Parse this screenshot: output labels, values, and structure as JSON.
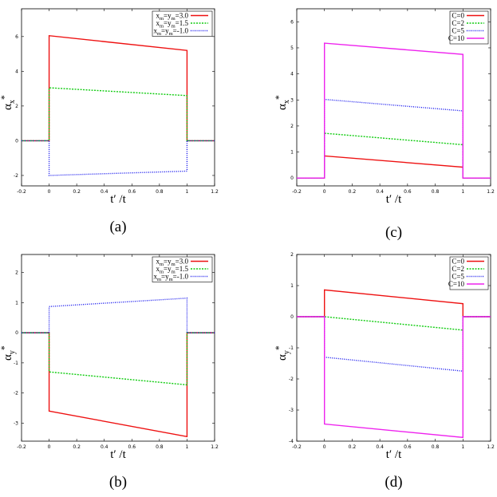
{
  "chart_data": [
    {
      "type": "line",
      "caption": "(a)",
      "xlabel": "t′ /t",
      "ylabel": "α",
      "ylabel_sub": "x",
      "ylabel_sup": "*",
      "xlim": [
        -0.2,
        1.2
      ],
      "ylim": [
        -2.6,
        7.6
      ],
      "xticks": [
        -0.2,
        0,
        0.2,
        0.4,
        0.6,
        0.8,
        1,
        1.2
      ],
      "yticks": [
        -2,
        0,
        2,
        4,
        6
      ],
      "legend": "top-right",
      "series": [
        {
          "name": "x",
          "label_parts": [
            "x",
            "m",
            "=y",
            "m",
            "=3.0"
          ],
          "color": "#ee1111",
          "dash": "",
          "x": [
            -0.2,
            0,
            0,
            1,
            1,
            1.2
          ],
          "y": [
            0,
            0,
            6.05,
            5.2,
            0,
            0
          ]
        },
        {
          "name": "x",
          "label_parts": [
            "x",
            "m",
            "=y",
            "m",
            "=1.5"
          ],
          "color": "#11cc11",
          "dash": "2,1.5",
          "x": [
            -0.2,
            0,
            0,
            1,
            1,
            1.2
          ],
          "y": [
            0,
            0,
            3.05,
            2.6,
            0,
            0
          ]
        },
        {
          "name": "x",
          "label_parts": [
            "x",
            "m",
            "=y",
            "m",
            "=-1.0"
          ],
          "color": "#1111ee",
          "dash": "1,1.5",
          "x": [
            -0.2,
            0,
            0,
            1,
            1,
            1.2
          ],
          "y": [
            0,
            0,
            -2.0,
            -1.75,
            0,
            0
          ]
        }
      ]
    },
    {
      "type": "line",
      "caption": "(c)",
      "xlabel": "t′ /t",
      "ylabel": "α",
      "ylabel_sub": "x",
      "ylabel_sup": "*",
      "xlim": [
        -0.2,
        1.2
      ],
      "ylim": [
        -0.3,
        6.5
      ],
      "xticks": [
        -0.2,
        0,
        0.2,
        0.4,
        0.6,
        0.8,
        1,
        1.2
      ],
      "yticks": [
        0,
        1,
        2,
        3,
        4,
        5,
        6
      ],
      "legend": "top-right",
      "series": [
        {
          "name": "C=0",
          "label_parts": [
            "C=0"
          ],
          "color": "#ee1111",
          "dash": "",
          "x": [
            -0.2,
            0,
            0,
            1,
            1,
            1.2
          ],
          "y": [
            0,
            0,
            0.85,
            0.42,
            0,
            0
          ]
        },
        {
          "name": "C=2",
          "label_parts": [
            "C=2"
          ],
          "color": "#11cc11",
          "dash": "2,1.5",
          "x": [
            -0.2,
            0,
            0,
            1,
            1,
            1.2
          ],
          "y": [
            0,
            0,
            1.72,
            1.28,
            0,
            0
          ]
        },
        {
          "name": "C=5",
          "label_parts": [
            "C=5"
          ],
          "color": "#1111ee",
          "dash": "1,1.5",
          "x": [
            -0.2,
            0,
            0,
            1,
            1,
            1.2
          ],
          "y": [
            0,
            0,
            3.02,
            2.58,
            0,
            0
          ]
        },
        {
          "name": "C=10",
          "label_parts": [
            "C=10"
          ],
          "color": "#ee22ee",
          "dash": "",
          "x": [
            -0.2,
            0,
            0,
            1,
            1,
            1.2
          ],
          "y": [
            0,
            0,
            5.18,
            4.75,
            0,
            0
          ]
        }
      ]
    },
    {
      "type": "line",
      "caption": "(b)",
      "xlabel": "t′ /t",
      "ylabel": "α",
      "ylabel_sub": "y",
      "ylabel_sup": "*",
      "xlim": [
        -0.2,
        1.2
      ],
      "ylim": [
        -3.6,
        2.6
      ],
      "xticks": [
        -0.2,
        0,
        0.2,
        0.4,
        0.6,
        0.8,
        1,
        1.2
      ],
      "yticks": [
        -3,
        -2,
        -1,
        0,
        1,
        2
      ],
      "legend": "top-right",
      "series": [
        {
          "name": "x",
          "label_parts": [
            "x",
            "m",
            "=y",
            "m",
            "=3.0"
          ],
          "color": "#ee1111",
          "dash": "",
          "x": [
            -0.2,
            0,
            0,
            1,
            1,
            1.2
          ],
          "y": [
            0,
            0,
            -2.6,
            -3.45,
            0,
            0
          ]
        },
        {
          "name": "x",
          "label_parts": [
            "x",
            "m",
            "=y",
            "m",
            "=1.5"
          ],
          "color": "#11cc11",
          "dash": "2,1.5",
          "x": [
            -0.2,
            0,
            0,
            1,
            1,
            1.2
          ],
          "y": [
            0,
            0,
            -1.3,
            -1.73,
            0,
            0
          ]
        },
        {
          "name": "x",
          "label_parts": [
            "x",
            "m",
            "=y",
            "m",
            "=-1.0"
          ],
          "color": "#1111ee",
          "dash": "1,1.5",
          "x": [
            -0.2,
            0,
            0,
            1,
            1,
            1.2
          ],
          "y": [
            0,
            0,
            0.87,
            1.15,
            0,
            0
          ]
        }
      ]
    },
    {
      "type": "line",
      "caption": "(d)",
      "xlabel": "t′ /t",
      "ylabel": "α",
      "ylabel_sub": "y",
      "ylabel_sup": "*",
      "xlim": [
        -0.2,
        1.2
      ],
      "ylim": [
        -4,
        2
      ],
      "xticks": [
        -0.2,
        0,
        0.2,
        0.4,
        0.6,
        0.8,
        1,
        1.2
      ],
      "yticks": [
        -4,
        -3,
        -2,
        -1,
        0,
        1,
        2
      ],
      "legend": "top-right",
      "series": [
        {
          "name": "C=0",
          "label_parts": [
            "C=0"
          ],
          "color": "#ee1111",
          "dash": "",
          "x": [
            -0.2,
            0,
            0,
            1,
            1,
            1.2
          ],
          "y": [
            0,
            0,
            0.86,
            0.42,
            0,
            0
          ]
        },
        {
          "name": "C=2",
          "label_parts": [
            "C=2"
          ],
          "color": "#11cc11",
          "dash": "2,1.5",
          "x": [
            -0.2,
            0,
            0,
            1,
            1,
            1.2
          ],
          "y": [
            0,
            0,
            0,
            -0.43,
            0,
            0
          ]
        },
        {
          "name": "C=5",
          "label_parts": [
            "C=5"
          ],
          "color": "#1111ee",
          "dash": "1,1.5",
          "x": [
            -0.2,
            0,
            0,
            1,
            1,
            1.2
          ],
          "y": [
            0,
            0,
            -1.3,
            -1.75,
            0,
            0
          ]
        },
        {
          "name": "C=10",
          "label_parts": [
            "C=10"
          ],
          "color": "#ee22ee",
          "dash": "",
          "x": [
            -0.2,
            0,
            0,
            1,
            1,
            1.2
          ],
          "y": [
            0,
            0,
            -3.45,
            -3.88,
            0,
            0
          ]
        }
      ]
    }
  ]
}
